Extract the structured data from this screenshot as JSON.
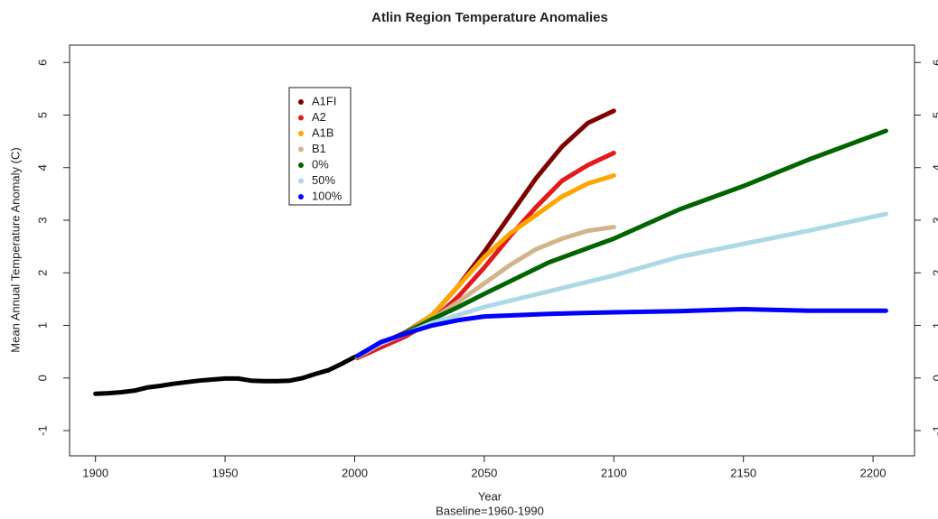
{
  "chart_data": {
    "type": "line",
    "title": "Atlin Region Temperature Anomalies",
    "x_label": "Year",
    "subtitle": "Baseline=1960-1990",
    "y_label": "Mean Annual Temperature Anomaly (C)",
    "xlim": [
      1890,
      2216
    ],
    "xticks": [
      1900,
      1950,
      2000,
      2050,
      2100,
      2150,
      2200
    ],
    "ylim": [
      -1.48,
      6.33
    ],
    "yticks": [
      -1,
      0,
      1,
      2,
      3,
      4,
      5,
      6
    ],
    "y2lim": [
      -1.48,
      6.33
    ],
    "y2ticks": [
      -1,
      0,
      1,
      2,
      3,
      4,
      5,
      6
    ],
    "series": [
      {
        "color": "#000000",
        "x": [
          1900,
          1905,
          1910,
          1915,
          1920,
          1925,
          1930,
          1935,
          1940,
          1945,
          1950,
          1955,
          1960,
          1965,
          1970,
          1975,
          1980,
          1985,
          1990,
          1995,
          2000
        ],
        "values": [
          -0.3,
          -0.29,
          -0.27,
          -0.24,
          -0.18,
          -0.15,
          -0.11,
          -0.08,
          -0.05,
          -0.03,
          -0.01,
          -0.01,
          -0.05,
          -0.06,
          -0.06,
          -0.05,
          0.0,
          0.08,
          0.15,
          0.27,
          0.4
        ]
      },
      {
        "name": "A1FI",
        "color": "#800000",
        "x": [
          2001,
          2010,
          2020,
          2030,
          2040,
          2050,
          2060,
          2070,
          2080,
          2090,
          2100
        ],
        "values": [
          0.4,
          0.65,
          0.88,
          1.2,
          1.75,
          2.4,
          3.1,
          3.8,
          4.4,
          4.85,
          5.08
        ]
      },
      {
        "name": "A2",
        "color": "#e31a1c",
        "x": [
          2001,
          2010,
          2020,
          2030,
          2040,
          2050,
          2060,
          2070,
          2080,
          2090,
          2100
        ],
        "values": [
          0.38,
          0.58,
          0.8,
          1.1,
          1.55,
          2.1,
          2.7,
          3.25,
          3.75,
          4.05,
          4.28
        ]
      },
      {
        "name": "A1B",
        "color": "#ffa500",
        "x": [
          2001,
          2010,
          2020,
          2030,
          2040,
          2050,
          2060,
          2070,
          2080,
          2090,
          2100
        ],
        "values": [
          0.4,
          0.65,
          0.87,
          1.2,
          1.75,
          2.3,
          2.75,
          3.1,
          3.45,
          3.7,
          3.85
        ]
      },
      {
        "name": "B1",
        "color": "#d2b48c",
        "x": [
          2001,
          2010,
          2020,
          2030,
          2040,
          2050,
          2060,
          2070,
          2080,
          2090,
          2100
        ],
        "values": [
          0.4,
          0.65,
          0.87,
          1.12,
          1.45,
          1.8,
          2.15,
          2.45,
          2.65,
          2.8,
          2.87
        ]
      },
      {
        "name": "0%",
        "color": "#006400",
        "x": [
          2001,
          2010,
          2020,
          2030,
          2040,
          2050,
          2075,
          2100,
          2125,
          2150,
          2175,
          2205
        ],
        "values": [
          0.42,
          0.65,
          0.87,
          1.12,
          1.35,
          1.6,
          2.2,
          2.65,
          3.2,
          3.65,
          4.15,
          4.7
        ]
      },
      {
        "name": "50%",
        "color": "#add8e6",
        "x": [
          2001,
          2010,
          2020,
          2030,
          2040,
          2050,
          2075,
          2100,
          2125,
          2150,
          2175,
          2205
        ],
        "values": [
          0.42,
          0.65,
          0.85,
          1.05,
          1.2,
          1.35,
          1.65,
          1.95,
          2.3,
          2.55,
          2.8,
          3.12
        ]
      },
      {
        "name": "100%",
        "color": "#0000ff",
        "x": [
          2001,
          2010,
          2020,
          2030,
          2040,
          2050,
          2075,
          2100,
          2125,
          2150,
          2175,
          2205
        ],
        "values": [
          0.42,
          0.68,
          0.85,
          1.0,
          1.1,
          1.17,
          1.22,
          1.25,
          1.27,
          1.31,
          1.28,
          1.28
        ]
      }
    ]
  }
}
